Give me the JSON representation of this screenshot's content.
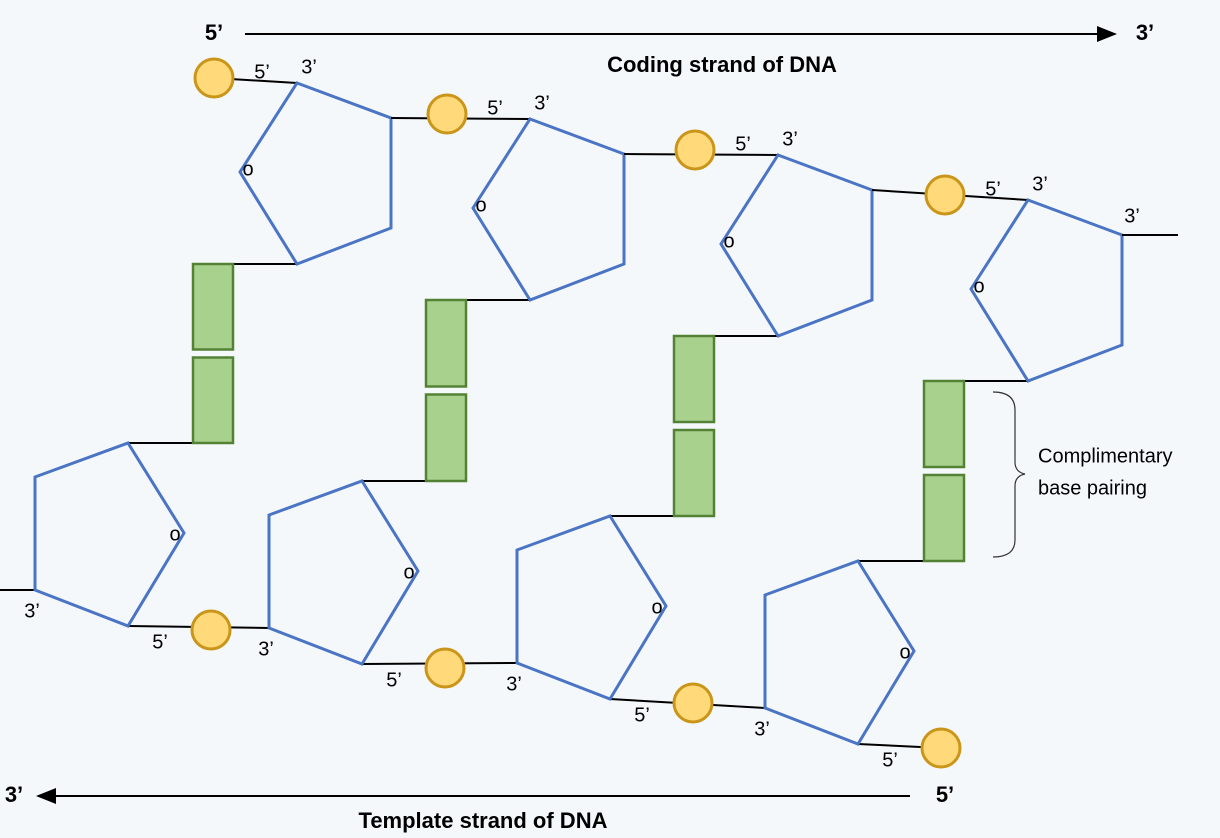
{
  "coding_strand": {
    "start_label": "5’",
    "end_label": "3’",
    "title": "Coding strand of DNA"
  },
  "template_strand": {
    "start_label": "3’",
    "end_label": "5’",
    "title": "Template strand of DNA"
  },
  "annotation": {
    "lines": [
      "Complimentary",
      "base pairing"
    ]
  },
  "top_nucleotides": [
    {
      "five_prime": "5’",
      "three_prime": "3’",
      "ring_oxygen": "o"
    },
    {
      "five_prime": "5’",
      "three_prime": "3’",
      "ring_oxygen": "o"
    },
    {
      "five_prime": "5’",
      "three_prime": "3’",
      "ring_oxygen": "o"
    },
    {
      "five_prime": "5’",
      "three_prime": "3’",
      "ring_oxygen": "o"
    }
  ],
  "bottom_nucleotides": [
    {
      "five_prime": "5’",
      "three_prime": "3’",
      "ring_oxygen": "o"
    },
    {
      "five_prime": "5’",
      "three_prime": "3’",
      "ring_oxygen": "o"
    },
    {
      "five_prime": "5’",
      "three_prime": "3’",
      "ring_oxygen": "o"
    },
    {
      "five_prime": "5’",
      "three_prime": "3’",
      "ring_oxygen": "o"
    }
  ]
}
